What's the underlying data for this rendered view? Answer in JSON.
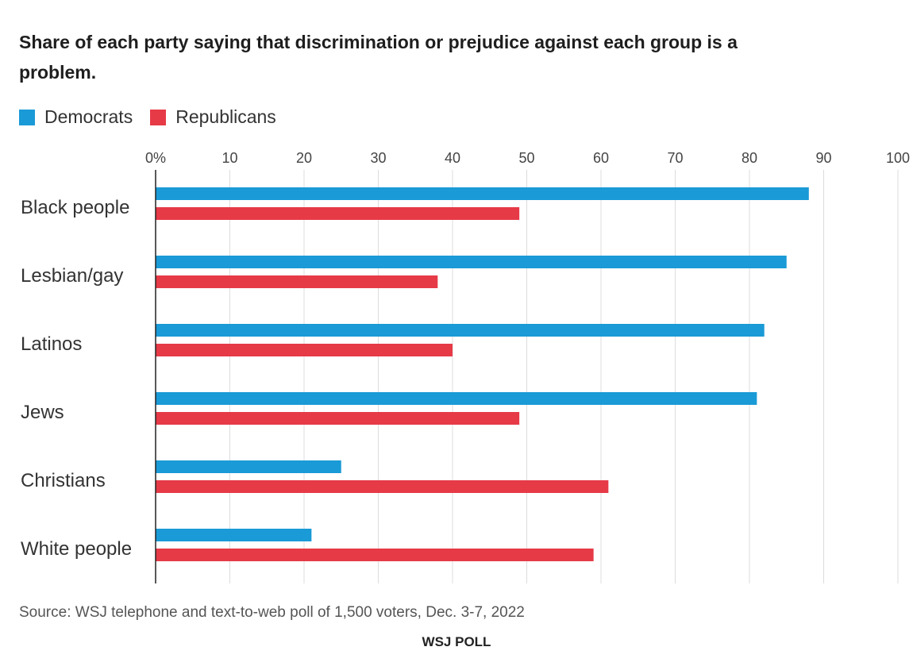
{
  "chart_data": {
    "type": "bar",
    "orientation": "horizontal",
    "title": "Share of each party saying that discrimination or prejudice against each group is a problem.",
    "categories": [
      "Black people",
      "Lesbian/gay",
      "Latinos",
      "Jews",
      "Christians",
      "White people"
    ],
    "series": [
      {
        "name": "Democrats",
        "color": "#1a9ad6",
        "values": [
          88,
          85,
          82,
          81,
          25,
          21
        ]
      },
      {
        "name": "Republicans",
        "color": "#e63a47",
        "values": [
          49,
          38,
          40,
          49,
          61,
          59
        ]
      }
    ],
    "x_ticks": [
      "0%",
      "10",
      "20",
      "30",
      "40",
      "50",
      "60",
      "70",
      "80",
      "90",
      "100"
    ],
    "xlim": [
      0,
      100
    ],
    "grid": true,
    "legend_position": "top-left",
    "source": "Source: WSJ telephone and text-to-web poll of 1,500 voters, Dec. 3-7, 2022",
    "credit": "WSJ POLL"
  }
}
